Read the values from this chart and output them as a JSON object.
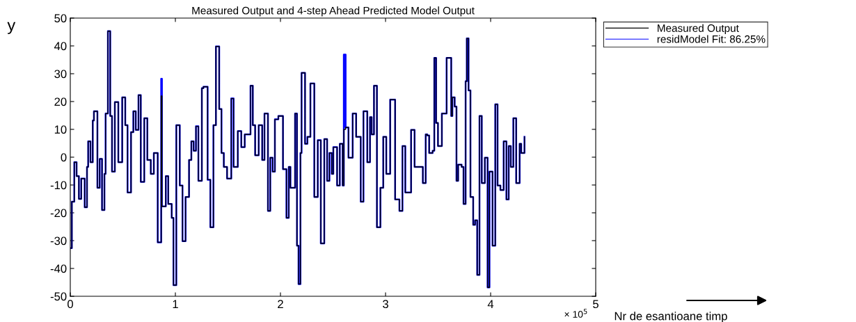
{
  "chart_data": {
    "type": "step",
    "title": "Measured Output and 4-step Ahead Predicted Model Output",
    "xlabel": "Nr de esantioane timp",
    "ylabel": "y",
    "annotations": [
      "× 10$^{5}$"
    ],
    "xlim": [
      0,
      5
    ],
    "xticks": [
      0,
      1,
      2,
      3,
      4,
      5
    ],
    "ylim": [
      -50,
      50
    ],
    "yticks": [
      -50,
      -40,
      -30,
      -20,
      -10,
      0,
      10,
      20,
      30,
      40,
      50
    ],
    "grid": false,
    "legend": "top right",
    "marker": "none",
    "line_style": "solid",
    "series": [
      {
        "name": "Measured Output",
        "color": "#000000",
        "x": [
          0.0,
          0.015,
          0.038,
          0.06,
          0.082,
          0.104,
          0.137,
          0.159,
          0.17,
          0.192,
          0.214,
          0.225,
          0.258,
          0.28,
          0.302,
          0.325,
          0.336,
          0.358,
          0.38,
          0.397,
          0.424,
          0.457,
          0.494,
          0.523,
          0.545,
          0.578,
          0.6,
          0.623,
          0.649,
          0.671,
          0.704,
          0.733,
          0.766,
          0.795,
          0.832,
          0.865,
          0.872,
          0.909,
          0.932,
          0.965,
          0.982,
          1.009,
          1.042,
          1.068,
          1.097,
          1.13,
          1.152,
          1.174,
          1.196,
          1.219,
          1.252,
          1.267,
          1.307,
          1.333,
          1.362,
          1.386,
          1.417,
          1.439,
          1.461,
          1.492,
          1.532,
          1.554,
          1.594,
          1.627,
          1.66,
          1.715,
          1.737,
          1.759,
          1.793,
          1.826,
          1.848,
          1.881,
          1.903,
          1.925,
          1.947,
          1.98,
          2.024,
          2.057,
          2.079,
          2.095,
          2.139,
          2.157,
          2.172,
          2.19,
          2.201,
          2.234,
          2.256,
          2.285,
          2.322,
          2.355,
          2.384,
          2.417,
          2.444,
          2.466,
          2.488,
          2.503,
          2.539,
          2.565,
          2.592,
          2.603,
          2.62,
          2.647,
          2.687,
          2.72,
          2.764,
          2.79,
          2.826,
          2.852,
          2.868,
          2.89,
          2.918,
          2.951,
          2.978,
          3.007,
          3.044,
          3.091,
          3.132,
          3.161,
          3.188,
          3.243,
          3.276,
          3.32,
          3.355,
          3.382,
          3.397,
          3.415,
          3.448,
          3.464,
          3.481,
          3.499,
          3.536,
          3.581,
          3.625,
          3.636,
          3.658,
          3.675,
          3.691,
          3.724,
          3.742,
          3.762,
          3.773,
          3.79,
          3.808,
          3.834,
          3.852,
          3.872,
          3.894,
          3.916,
          3.945,
          3.971,
          3.989,
          4.018,
          4.044,
          4.066,
          4.093,
          4.124,
          4.15,
          4.172,
          4.192,
          4.216,
          4.243,
          4.276,
          4.291,
          4.322
        ],
        "values": [
          -32.7,
          -16,
          -1.8,
          -6.8,
          -15,
          -7.7,
          -18,
          -3.5,
          5.7,
          -1.8,
          13.2,
          16.5,
          -11,
          -0.6,
          -19,
          -6,
          15.7,
          45.3,
          14.8,
          -5.2,
          19.8,
          -1.8,
          21.5,
          11.5,
          -12.7,
          9,
          16.5,
          9.8,
          22.3,
          -8.9,
          14,
          -1,
          -6,
          1.5,
          -30.6,
          22,
          -17.7,
          -6.8,
          -16.8,
          -21.8,
          -46,
          11.5,
          -10.2,
          -30.2,
          -14.3,
          -1,
          5.7,
          2.3,
          11.1,
          -8.5,
          24.8,
          25.3,
          -8.1,
          -25.2,
          11.5,
          39.8,
          17.3,
          1.5,
          -3.5,
          -7.7,
          21.1,
          -3.5,
          9.4,
          3.6,
          8.2,
          25.7,
          11.5,
          0.7,
          11.5,
          -1,
          15.7,
          -19.3,
          -0.2,
          -5.2,
          13.6,
          14.8,
          -4.3,
          -21.8,
          -3.5,
          -11,
          15.7,
          -31.8,
          -45.6,
          1.5,
          30.3,
          4.8,
          7.3,
          26.5,
          -14.3,
          6.1,
          -31,
          6.5,
          -8.5,
          1.5,
          -6,
          3.6,
          -10.2,
          4.8,
          -10.2,
          10,
          10.7,
          -0.2,
          15.7,
          7.3,
          -16,
          16.5,
          -1.8,
          14.4,
          8.2,
          25.7,
          -25.2,
          -11,
          7.3,
          -6,
          20.7,
          -15.2,
          -19.3,
          4,
          -12.7,
          9.8,
          -3.5,
          -3.5,
          -9.3,
          8.2,
          7.8,
          1.5,
          2.3,
          35.7,
          12.3,
          4,
          15.7,
          35.7,
          14.8,
          21.5,
          18.2,
          -8.5,
          -2.7,
          -3.5,
          -16.8,
          27.3,
          42.7,
          24,
          -14.3,
          -24.3,
          -22.7,
          -42.3,
          14.8,
          -9.3,
          -0.2,
          -46.8,
          -5.2,
          -31.8,
          19,
          -10.2,
          -11.8,
          5.7,
          -15.2,
          4,
          -3.5,
          14,
          -9.3,
          4.8,
          1.5,
          7.3
        ]
      },
      {
        "name": "residModel Fit: 86.25%",
        "color": "#0000ff",
        "x": [
          0.0,
          0.015,
          0.038,
          0.06,
          0.082,
          0.104,
          0.137,
          0.159,
          0.17,
          0.192,
          0.214,
          0.225,
          0.258,
          0.28,
          0.302,
          0.325,
          0.336,
          0.358,
          0.38,
          0.397,
          0.424,
          0.457,
          0.494,
          0.523,
          0.545,
          0.578,
          0.6,
          0.623,
          0.649,
          0.671,
          0.704,
          0.733,
          0.766,
          0.795,
          0.832,
          0.865,
          0.872,
          0.909,
          0.932,
          0.965,
          0.982,
          1.009,
          1.042,
          1.068,
          1.097,
          1.13,
          1.152,
          1.174,
          1.196,
          1.219,
          1.252,
          1.267,
          1.307,
          1.333,
          1.362,
          1.386,
          1.417,
          1.439,
          1.461,
          1.492,
          1.532,
          1.554,
          1.594,
          1.627,
          1.66,
          1.715,
          1.737,
          1.759,
          1.793,
          1.826,
          1.848,
          1.881,
          1.903,
          1.925,
          1.947,
          1.98,
          2.024,
          2.057,
          2.079,
          2.095,
          2.139,
          2.157,
          2.172,
          2.19,
          2.201,
          2.234,
          2.256,
          2.285,
          2.322,
          2.355,
          2.384,
          2.417,
          2.444,
          2.466,
          2.488,
          2.503,
          2.539,
          2.565,
          2.592,
          2.603,
          2.62,
          2.647,
          2.687,
          2.72,
          2.764,
          2.79,
          2.826,
          2.852,
          2.868,
          2.89,
          2.918,
          2.951,
          2.978,
          3.007,
          3.044,
          3.091,
          3.132,
          3.161,
          3.188,
          3.243,
          3.276,
          3.32,
          3.355,
          3.382,
          3.397,
          3.415,
          3.448,
          3.464,
          3.481,
          3.499,
          3.536,
          3.581,
          3.625,
          3.636,
          3.658,
          3.675,
          3.691,
          3.724,
          3.742,
          3.762,
          3.773,
          3.79,
          3.808,
          3.834,
          3.852,
          3.872,
          3.894,
          3.916,
          3.945,
          3.971,
          3.989,
          4.018,
          4.044,
          4.066,
          4.093,
          4.124,
          4.15,
          4.172,
          4.192,
          4.216,
          4.243,
          4.276,
          4.291,
          4.322
        ],
        "values": [
          -32.7,
          -16,
          -1.8,
          -6.8,
          -15,
          -7.7,
          -18,
          -3.5,
          5.7,
          -1.8,
          13.2,
          16.5,
          -11,
          -0.6,
          -19,
          -6,
          15.7,
          45.3,
          14.8,
          -5.2,
          19.8,
          -1.8,
          21.5,
          11.5,
          -12.7,
          9,
          16.5,
          9.8,
          22.3,
          -8.9,
          14,
          -1,
          -6,
          1.5,
          -30.6,
          28.2,
          -17.7,
          -6.8,
          -16.8,
          -21.8,
          -46,
          11.5,
          -10.2,
          -30.2,
          -14.3,
          -1,
          5.7,
          2.3,
          11.1,
          -8.5,
          24.8,
          25.3,
          -8.1,
          -25.2,
          11.5,
          39.8,
          17.3,
          1.5,
          -3.5,
          -7.7,
          21.1,
          -3.5,
          9.4,
          3.6,
          8.2,
          25.7,
          11.5,
          0.7,
          11.5,
          -1,
          15.7,
          -19.3,
          -0.2,
          -5.2,
          13.6,
          14.8,
          -4.3,
          -21.8,
          -3.5,
          -11,
          15.7,
          -31.8,
          -45.6,
          1.5,
          30.3,
          4.8,
          7.3,
          26.5,
          -14.3,
          6.1,
          -31,
          6.5,
          -8.5,
          1.5,
          -6,
          3.6,
          -10.2,
          4.8,
          -10.2,
          36.9,
          10.7,
          -0.2,
          15.7,
          7.3,
          -16,
          16.5,
          -1.8,
          14.4,
          8.2,
          25.7,
          -25.2,
          -11,
          7.3,
          -6,
          20.7,
          -15.2,
          -19.3,
          4,
          -12.7,
          9.8,
          -3.5,
          -3.5,
          -9.3,
          8.2,
          7.8,
          1.5,
          2.3,
          35.7,
          12.3,
          4,
          15.7,
          35.7,
          14.8,
          21.5,
          18.2,
          -8.5,
          -2.7,
          -3.5,
          -16.8,
          27.3,
          42.7,
          24,
          -14.3,
          -24.3,
          -22.7,
          -42.3,
          14.8,
          -9.3,
          -0.2,
          -46.8,
          -5.2,
          -31.8,
          19,
          -10.2,
          -11.8,
          5.7,
          -15.2,
          4,
          -3.5,
          14,
          -9.3,
          4.8,
          1.5,
          7.3
        ]
      }
    ]
  }
}
